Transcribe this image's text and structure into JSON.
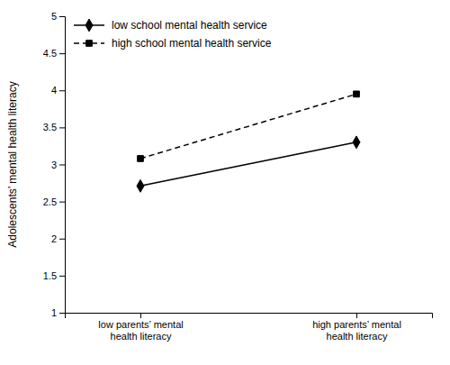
{
  "chart_data": {
    "type": "line",
    "categories": [
      "low parents’ mental\nhealth literacy",
      "high parents’ mental\nhealth literacy"
    ],
    "series": [
      {
        "name": "low school mental health service",
        "color": "#000000",
        "marker": "diamond",
        "line_style": "solid",
        "values": [
          2.71,
          3.3
        ]
      },
      {
        "name": "high school mental health service",
        "color": "#000000",
        "marker": "square",
        "line_style": "dashed",
        "values": [
          3.08,
          3.95
        ]
      }
    ],
    "y_label": "Adolescents’ mental health literacy",
    "ylim": [
      1,
      5
    ],
    "yticks": [
      1,
      1.5,
      2,
      2.5,
      3,
      3.5,
      4,
      4.5,
      5
    ],
    "grid": false,
    "legend": "upper left"
  }
}
